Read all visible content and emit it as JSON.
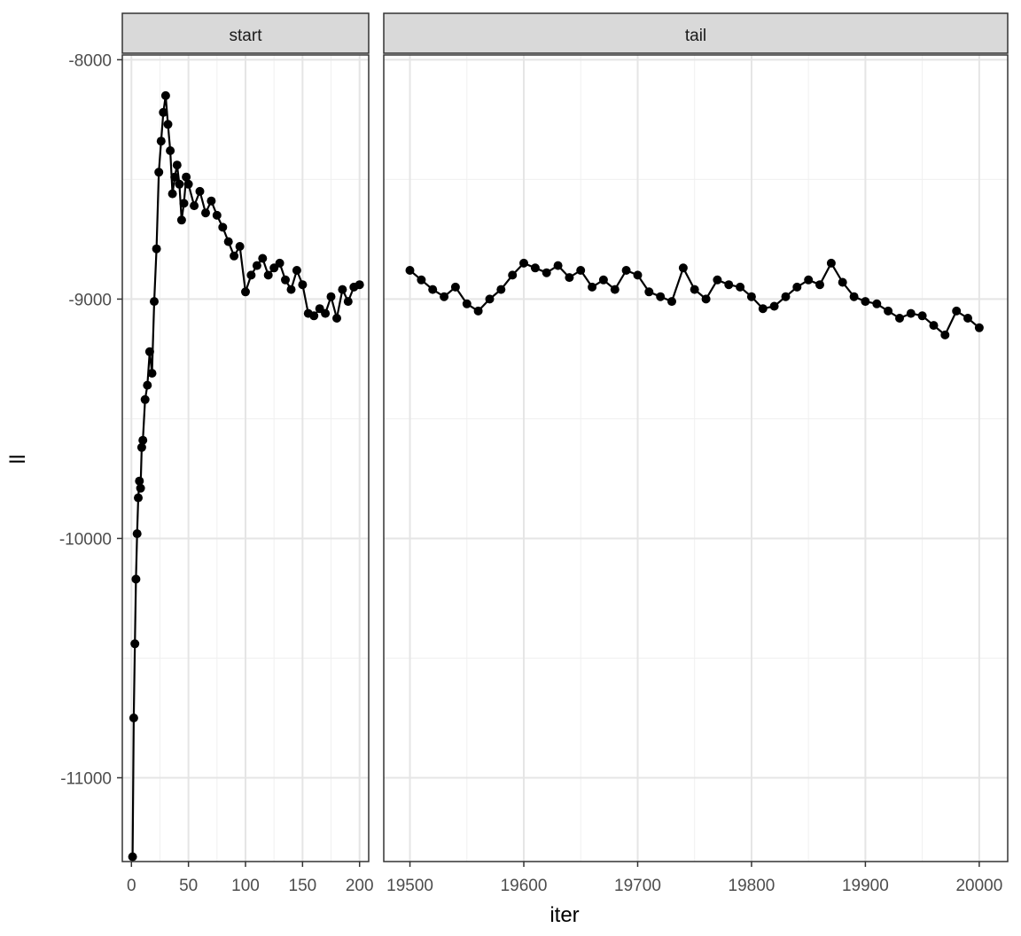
{
  "chart_data": {
    "type": "line",
    "xlabel": "iter",
    "ylabel": "ll",
    "ylim": [
      -11350,
      -7980
    ],
    "y_ticks": [
      -8000,
      -9000,
      -10000,
      -11000
    ],
    "y_tick_labels": [
      "-8000",
      "-9000",
      "-10000",
      "-11000"
    ],
    "grid": true,
    "point_color": "#000000",
    "line_color": "#000000",
    "panels": [
      {
        "strip_label": "start",
        "xlim": [
          -8,
          208
        ],
        "x_ticks": [
          0,
          50,
          100,
          150,
          200
        ],
        "x_tick_labels": [
          "0",
          "50",
          "100",
          "150",
          "200"
        ],
        "x": [
          1,
          2,
          3,
          4,
          5,
          6,
          7,
          8,
          9,
          10,
          12,
          14,
          16,
          18,
          20,
          22,
          24,
          26,
          28,
          30,
          32,
          34,
          36,
          38,
          40,
          42,
          44,
          46,
          48,
          50,
          55,
          60,
          65,
          70,
          75,
          80,
          85,
          90,
          95,
          100,
          105,
          110,
          115,
          120,
          125,
          130,
          135,
          140,
          145,
          150,
          155,
          160,
          165,
          170,
          175,
          180,
          185,
          190,
          195,
          200
        ],
        "y": [
          -11330,
          -10750,
          -10440,
          -10170,
          -9980,
          -9830,
          -9760,
          -9790,
          -9620,
          -9590,
          -9420,
          -9360,
          -9220,
          -9310,
          -9010,
          -8790,
          -8470,
          -8340,
          -8220,
          -8150,
          -8270,
          -8380,
          -8560,
          -8490,
          -8440,
          -8520,
          -8670,
          -8600,
          -8490,
          -8520,
          -8610,
          -8550,
          -8640,
          -8590,
          -8650,
          -8700,
          -8760,
          -8820,
          -8780,
          -8970,
          -8900,
          -8860,
          -8830,
          -8900,
          -8870,
          -8850,
          -8920,
          -8960,
          -8880,
          -8940,
          -9060,
          -9070,
          -9040,
          -9060,
          -8990,
          -9080,
          -8960,
          -9010,
          -8950,
          -8940
        ]
      },
      {
        "strip_label": "tail",
        "xlim": [
          19477,
          20025
        ],
        "x_ticks": [
          19500,
          19600,
          19700,
          19800,
          19900,
          20000
        ],
        "x_tick_labels": [
          "19500",
          "19600",
          "19700",
          "19800",
          "19900",
          "20000"
        ],
        "x": [
          19500,
          19510,
          19520,
          19530,
          19540,
          19550,
          19560,
          19570,
          19580,
          19590,
          19600,
          19610,
          19620,
          19630,
          19640,
          19650,
          19660,
          19670,
          19680,
          19690,
          19700,
          19710,
          19720,
          19730,
          19740,
          19750,
          19760,
          19770,
          19780,
          19790,
          19800,
          19810,
          19820,
          19830,
          19840,
          19850,
          19860,
          19870,
          19880,
          19890,
          19900,
          19910,
          19920,
          19930,
          19940,
          19950,
          19960,
          19970,
          19980,
          19990,
          20000
        ],
        "y": [
          -8880,
          -8920,
          -8960,
          -8990,
          -8950,
          -9020,
          -9050,
          -9000,
          -8960,
          -8900,
          -8850,
          -8870,
          -8890,
          -8860,
          -8910,
          -8880,
          -8950,
          -8920,
          -8960,
          -8880,
          -8900,
          -8970,
          -8990,
          -9010,
          -8870,
          -8960,
          -9000,
          -8920,
          -8940,
          -8950,
          -8990,
          -9040,
          -9030,
          -8990,
          -8950,
          -8920,
          -8940,
          -8850,
          -8930,
          -8990,
          -9010,
          -9020,
          -9050,
          -9080,
          -9060,
          -9070,
          -9110,
          -9150,
          -9050,
          -9080,
          -9120
        ]
      }
    ]
  }
}
